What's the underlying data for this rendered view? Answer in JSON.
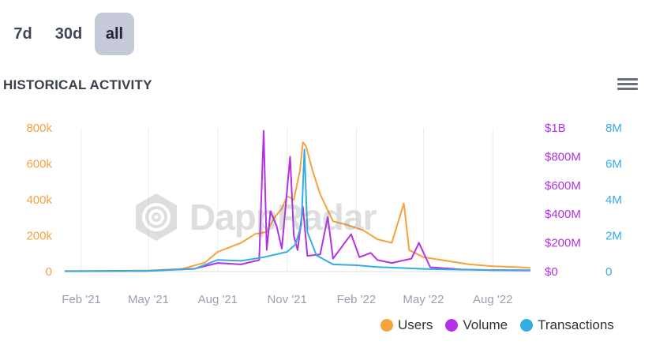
{
  "tabs": [
    {
      "label": "7d",
      "active": false
    },
    {
      "label": "30d",
      "active": false
    },
    {
      "label": "all",
      "active": true
    }
  ],
  "header": {
    "title": "HISTORICAL ACTIVITY",
    "menu_icon": "hamburger-menu-icon"
  },
  "watermark": {
    "text": "DappRadar",
    "icon": "dappradar-logo-icon"
  },
  "colors": {
    "users": "#f7a23b",
    "volume": "#b630e6",
    "transactions": "#33aee0",
    "tab_active_bg": "#c6cad8"
  },
  "chart_data": {
    "type": "line",
    "x_ticks": [
      "Feb '21",
      "May '21",
      "Aug '21",
      "Nov '21",
      "Feb '22",
      "May '22",
      "Aug '22"
    ],
    "x_range": [
      "2021-01-10",
      "2022-09-20"
    ],
    "axes": {
      "users": {
        "ticks": [
          "0",
          "200k",
          "400k",
          "600k",
          "800k"
        ],
        "range": [
          0,
          800000
        ]
      },
      "volume": {
        "ticks": [
          "$0",
          "$200M",
          "$400M",
          "$600M",
          "$800M",
          "$1B"
        ],
        "range": [
          0,
          1000000000
        ]
      },
      "transactions": {
        "ticks": [
          "0",
          "2M",
          "4M",
          "6M",
          "8M"
        ],
        "range": [
          0,
          8000000
        ]
      }
    },
    "series": [
      {
        "name": "Users",
        "axis": "users",
        "points": [
          [
            "2021-01-10",
            3000
          ],
          [
            "2021-03-01",
            4000
          ],
          [
            "2021-05-01",
            6000
          ],
          [
            "2021-06-15",
            15000
          ],
          [
            "2021-07-15",
            50000
          ],
          [
            "2021-08-01",
            110000
          ],
          [
            "2021-08-20",
            140000
          ],
          [
            "2021-09-01",
            160000
          ],
          [
            "2021-09-20",
            210000
          ],
          [
            "2021-10-05",
            220000
          ],
          [
            "2021-10-15",
            300000
          ],
          [
            "2021-10-25",
            350000
          ],
          [
            "2021-11-01",
            420000
          ],
          [
            "2021-11-10",
            400000
          ],
          [
            "2021-11-18",
            560000
          ],
          [
            "2021-11-22",
            720000
          ],
          [
            "2021-11-26",
            700000
          ],
          [
            "2021-12-05",
            560000
          ],
          [
            "2021-12-15",
            430000
          ],
          [
            "2022-01-01",
            280000
          ],
          [
            "2022-01-20",
            260000
          ],
          [
            "2022-02-10",
            230000
          ],
          [
            "2022-03-01",
            180000
          ],
          [
            "2022-03-20",
            160000
          ],
          [
            "2022-04-05",
            380000
          ],
          [
            "2022-04-12",
            120000
          ],
          [
            "2022-05-01",
            80000
          ],
          [
            "2022-06-01",
            60000
          ],
          [
            "2022-07-01",
            40000
          ],
          [
            "2022-08-01",
            30000
          ],
          [
            "2022-09-01",
            25000
          ],
          [
            "2022-09-20",
            20000
          ]
        ]
      },
      {
        "name": "Volume",
        "axis": "volume",
        "points": [
          [
            "2021-01-10",
            2000000
          ],
          [
            "2021-05-01",
            5000000
          ],
          [
            "2021-07-01",
            20000000
          ],
          [
            "2021-08-01",
            60000000
          ],
          [
            "2021-09-01",
            50000000
          ],
          [
            "2021-09-25",
            80000000
          ],
          [
            "2021-10-01",
            980000000
          ],
          [
            "2021-10-05",
            150000000
          ],
          [
            "2021-10-10",
            420000000
          ],
          [
            "2021-10-18",
            320000000
          ],
          [
            "2021-10-25",
            160000000
          ],
          [
            "2021-11-05",
            800000000
          ],
          [
            "2021-11-10",
            250000000
          ],
          [
            "2021-11-15",
            150000000
          ],
          [
            "2021-11-22",
            450000000
          ],
          [
            "2021-11-28",
            110000000
          ],
          [
            "2021-12-15",
            120000000
          ],
          [
            "2021-12-25",
            380000000
          ],
          [
            "2022-01-01",
            90000000
          ],
          [
            "2022-01-25",
            260000000
          ],
          [
            "2022-02-05",
            100000000
          ],
          [
            "2022-02-20",
            130000000
          ],
          [
            "2022-03-01",
            80000000
          ],
          [
            "2022-03-20",
            60000000
          ],
          [
            "2022-04-15",
            90000000
          ],
          [
            "2022-04-25",
            200000000
          ],
          [
            "2022-05-10",
            30000000
          ],
          [
            "2022-06-20",
            15000000
          ],
          [
            "2022-08-01",
            10000000
          ],
          [
            "2022-09-20",
            8000000
          ]
        ]
      },
      {
        "name": "Transactions",
        "axis": "transactions",
        "points": [
          [
            "2021-01-10",
            20000
          ],
          [
            "2021-05-01",
            40000
          ],
          [
            "2021-07-01",
            150000
          ],
          [
            "2021-08-01",
            650000
          ],
          [
            "2021-09-01",
            600000
          ],
          [
            "2021-10-01",
            800000
          ],
          [
            "2021-11-01",
            1100000
          ],
          [
            "2021-11-12",
            1500000
          ],
          [
            "2021-11-20",
            2600000
          ],
          [
            "2021-11-24",
            6800000
          ],
          [
            "2021-11-28",
            2200000
          ],
          [
            "2021-12-10",
            900000
          ],
          [
            "2022-01-01",
            400000
          ],
          [
            "2022-02-01",
            350000
          ],
          [
            "2022-03-01",
            250000
          ],
          [
            "2022-04-01",
            200000
          ],
          [
            "2022-05-01",
            150000
          ],
          [
            "2022-06-01",
            120000
          ],
          [
            "2022-07-01",
            100000
          ],
          [
            "2022-09-20",
            80000
          ]
        ]
      }
    ],
    "legend": {
      "position": "bottom-right"
    },
    "grid": "vertical"
  }
}
